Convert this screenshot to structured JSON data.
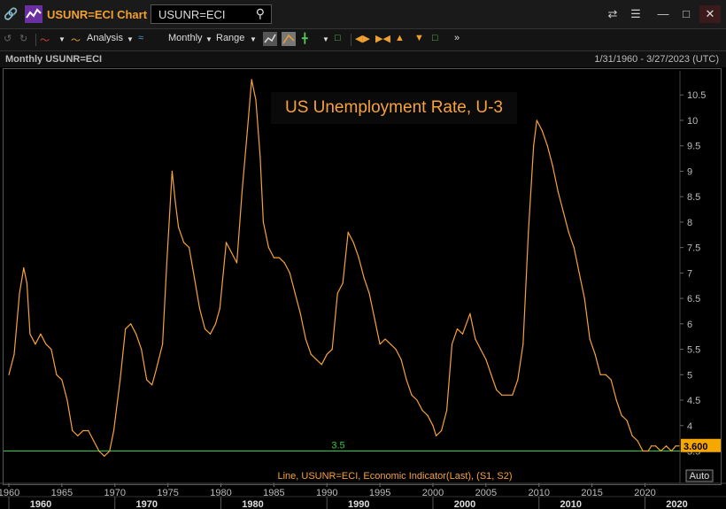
{
  "app": {
    "title": "USUNR=ECI Chart",
    "search_value": "USUNR=ECI"
  },
  "toolbar": {
    "analysis_label": "Analysis",
    "period_label": "Monthly",
    "range_label": "Range"
  },
  "chart_header": {
    "series_title": "Monthly USUNR=ECI",
    "date_range": "1/31/1960 - 3/27/2023 (UTC)"
  },
  "colors": {
    "line": "#f7a23a",
    "reference_line": "#2ecc40",
    "last_value_tag": "#f7a800",
    "background": "#000000"
  },
  "chart_data": {
    "type": "line",
    "title": "US Unemployment Rate, U-3",
    "legend_text": "Line, USUNR=ECI, Economic Indicator(Last), (S1, S2)",
    "y_ticks": [
      "3.5",
      "4",
      "4.5",
      "5",
      "5.5",
      "6",
      "6.5",
      "7",
      "7.5",
      "8",
      "8.5",
      "9",
      "9.5",
      "10",
      "10.5"
    ],
    "ylim": [
      3.3,
      10.8
    ],
    "x_ticks_minor": [
      "1960",
      "1965",
      "1970",
      "1975",
      "1980",
      "1985",
      "1990",
      "1995",
      "2000",
      "2005",
      "2010",
      "2015",
      "2020"
    ],
    "x_ticks_major": [
      "1960",
      "1970",
      "1980",
      "1990",
      "2000",
      "2010",
      "2020"
    ],
    "xlim": [
      1960.0,
      2023.3
    ],
    "reference_line": {
      "value": 3.5,
      "label": "3.5"
    },
    "last_value": "3.600",
    "auto_label": "Auto",
    "series": [
      {
        "name": "USUNR=ECI",
        "x": [
          1960.0,
          1960.5,
          1961.0,
          1961.4,
          1961.7,
          1962.0,
          1962.5,
          1963.0,
          1963.5,
          1964.0,
          1964.5,
          1965.0,
          1965.5,
          1966.0,
          1966.5,
          1967.0,
          1967.5,
          1968.0,
          1968.5,
          1969.0,
          1969.5,
          1969.9,
          1970.5,
          1971.0,
          1971.5,
          1972.0,
          1972.5,
          1973.0,
          1973.5,
          1973.9,
          1974.5,
          1974.9,
          1975.4,
          1975.7,
          1976.0,
          1976.5,
          1977.0,
          1977.5,
          1978.0,
          1978.5,
          1979.0,
          1979.5,
          1979.9,
          1980.5,
          1981.0,
          1981.5,
          1982.0,
          1982.5,
          1982.9,
          1983.3,
          1983.7,
          1984.0,
          1984.5,
          1985.0,
          1985.5,
          1986.0,
          1986.5,
          1987.0,
          1987.5,
          1988.0,
          1988.5,
          1989.0,
          1989.5,
          1990.0,
          1990.5,
          1991.0,
          1991.5,
          1992.0,
          1992.5,
          1993.0,
          1993.5,
          1994.0,
          1994.5,
          1995.0,
          1995.5,
          1996.0,
          1996.5,
          1997.0,
          1997.5,
          1998.0,
          1998.5,
          1999.0,
          1999.5,
          2000.0,
          2000.3,
          2000.8,
          2001.3,
          2001.8,
          2002.3,
          2002.8,
          2003.5,
          2004.0,
          2004.5,
          2005.0,
          2005.5,
          2006.0,
          2006.5,
          2007.0,
          2007.5,
          2008.0,
          2008.5,
          2009.0,
          2009.5,
          2009.8,
          2010.3,
          2010.8,
          2011.3,
          2011.8,
          2012.3,
          2012.8,
          2013.3,
          2013.8,
          2014.3,
          2014.8,
          2015.3,
          2015.8,
          2016.3,
          2016.8,
          2017.3,
          2017.8,
          2018.3,
          2018.8,
          2019.3,
          2019.8,
          2020.0,
          2020.3,
          2020.6,
          2021.0,
          2021.5,
          2022.0,
          2022.5,
          2022.9,
          2023.2
        ],
        "values": [
          5.0,
          5.4,
          6.6,
          7.1,
          6.8,
          5.8,
          5.6,
          5.8,
          5.6,
          5.5,
          5.0,
          4.9,
          4.5,
          3.9,
          3.8,
          3.9,
          3.9,
          3.7,
          3.5,
          3.4,
          3.5,
          3.9,
          4.9,
          5.9,
          6.0,
          5.8,
          5.5,
          4.9,
          4.8,
          5.1,
          5.6,
          7.2,
          9.0,
          8.4,
          7.9,
          7.6,
          7.5,
          6.9,
          6.3,
          5.9,
          5.8,
          6.0,
          6.3,
          7.6,
          7.4,
          7.2,
          8.6,
          9.8,
          10.8,
          10.4,
          9.3,
          8.0,
          7.5,
          7.3,
          7.3,
          7.2,
          7.0,
          6.6,
          6.2,
          5.7,
          5.4,
          5.3,
          5.2,
          5.4,
          5.5,
          6.6,
          6.8,
          7.8,
          7.6,
          7.3,
          6.9,
          6.6,
          6.1,
          5.6,
          5.7,
          5.6,
          5.5,
          5.3,
          4.9,
          4.6,
          4.5,
          4.3,
          4.2,
          4.0,
          3.8,
          3.9,
          4.3,
          5.6,
          5.9,
          5.8,
          6.2,
          5.7,
          5.5,
          5.3,
          5.0,
          4.7,
          4.6,
          4.6,
          4.6,
          4.9,
          5.6,
          7.8,
          9.5,
          10.0,
          9.8,
          9.5,
          9.1,
          8.6,
          8.2,
          7.8,
          7.5,
          7.0,
          6.5,
          5.7,
          5.4,
          5.0,
          5.0,
          4.9,
          4.5,
          4.2,
          4.1,
          3.8,
          3.7,
          3.5,
          3.5,
          3.5,
          3.6,
          3.6,
          3.5,
          3.6,
          3.5,
          3.6,
          3.6
        ]
      }
    ]
  }
}
